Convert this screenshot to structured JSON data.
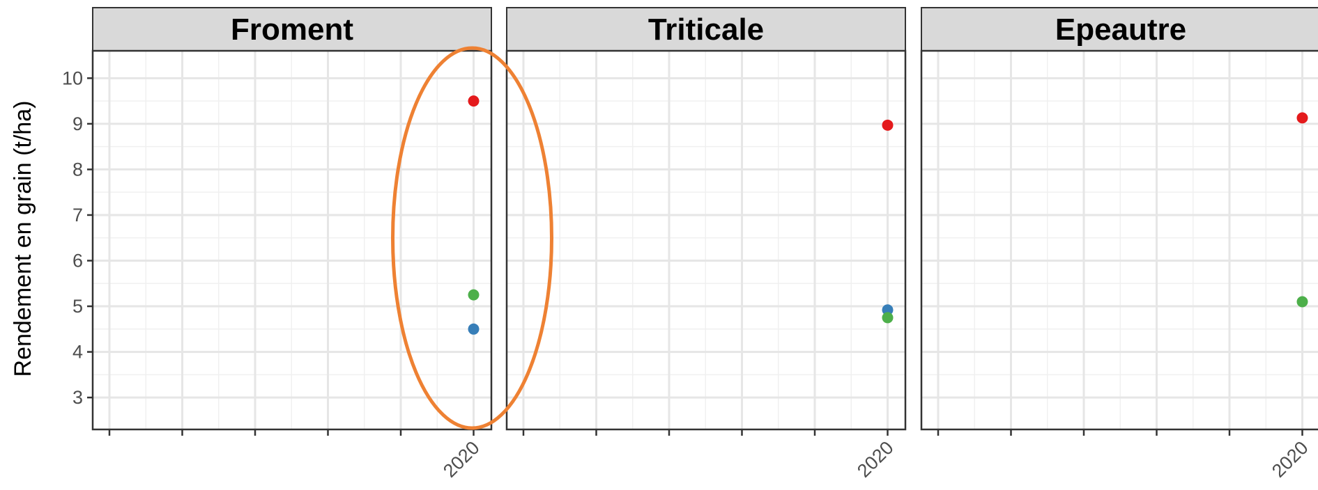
{
  "chart_data": {
    "type": "scatter",
    "facet_variable": "crop",
    "ylabel": "Rendement en grain (t/ha)",
    "xlabel": "",
    "ylim": [
      2.3,
      10.6
    ],
    "yticks": [
      3,
      4,
      5,
      6,
      7,
      8,
      9,
      10
    ],
    "x_tick_labels": [
      "",
      "",
      "",
      "",
      "",
      "2020"
    ],
    "grid": true,
    "legend": "none",
    "colors": {
      "red": "#e41a1c",
      "green": "#4daf4a",
      "blue": "#377eb8",
      "highlight": "#ee8133"
    },
    "highlight": {
      "shape": "ellipse",
      "panel": "Froment",
      "x": "2020",
      "color": "#ee8133"
    },
    "facets": [
      {
        "label": "Froment",
        "points": [
          {
            "x": "2020",
            "y": 9.5,
            "color": "#e41a1c"
          },
          {
            "x": "2020",
            "y": 5.25,
            "color": "#4daf4a"
          },
          {
            "x": "2020",
            "y": 4.5,
            "color": "#377eb8"
          }
        ]
      },
      {
        "label": "Triticale",
        "points": [
          {
            "x": "2020",
            "y": 8.97,
            "color": "#e41a1c"
          },
          {
            "x": "2020",
            "y": 4.92,
            "color": "#377eb8"
          },
          {
            "x": "2020",
            "y": 4.75,
            "color": "#4daf4a"
          }
        ]
      },
      {
        "label": "Epeautre",
        "points": [
          {
            "x": "2020",
            "y": 9.13,
            "color": "#e41a1c"
          },
          {
            "x": "2020",
            "y": 5.1,
            "color": "#4daf4a"
          }
        ]
      }
    ]
  }
}
